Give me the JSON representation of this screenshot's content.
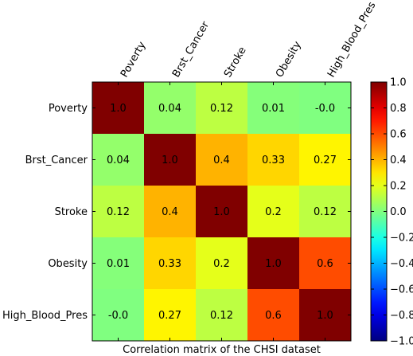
{
  "chart_data": {
    "type": "heatmap",
    "title": "",
    "xlabel": "Correlation matrix of the CHSI dataset",
    "ylabel": "",
    "x_categories": [
      "Poverty",
      "Brst_Cancer",
      "Stroke",
      "Obesity",
      "High_Blood_Pres"
    ],
    "y_categories": [
      "Poverty",
      "Brst_Cancer",
      "Stroke",
      "Obesity",
      "High_Blood_Pres"
    ],
    "values": [
      [
        1.0,
        0.04,
        0.12,
        0.01,
        -0.0
      ],
      [
        0.04,
        1.0,
        0.4,
        0.33,
        0.27
      ],
      [
        0.12,
        0.4,
        1.0,
        0.2,
        0.12
      ],
      [
        0.01,
        0.33,
        0.2,
        1.0,
        0.6
      ],
      [
        -0.0,
        0.27,
        0.12,
        0.6,
        1.0
      ]
    ],
    "cell_labels": [
      [
        "1.0",
        "0.04",
        "0.12",
        "0.01",
        "-0.0"
      ],
      [
        "0.04",
        "1.0",
        "0.4",
        "0.33",
        "0.27"
      ],
      [
        "0.12",
        "0.4",
        "1.0",
        "0.2",
        "0.12"
      ],
      [
        "0.01",
        "0.33",
        "0.2",
        "1.0",
        "0.6"
      ],
      [
        "-0.0",
        "0.27",
        "0.12",
        "0.6",
        "1.0"
      ]
    ],
    "colormap": "jet",
    "clim": [
      -1.0,
      1.0
    ],
    "colorbar_ticks": [
      1.0,
      0.8,
      0.6,
      0.4,
      0.2,
      0.0,
      -0.2,
      -0.4,
      -0.6,
      -0.8,
      -1.0
    ],
    "colorbar_tick_labels": [
      "1.0",
      "0.8",
      "0.6",
      "0.4",
      "0.2",
      "0.0",
      "−0.2",
      "−0.4",
      "−0.6",
      "−0.8",
      "−1.0"
    ],
    "x_tick_rotation": 60,
    "grid": false
  }
}
